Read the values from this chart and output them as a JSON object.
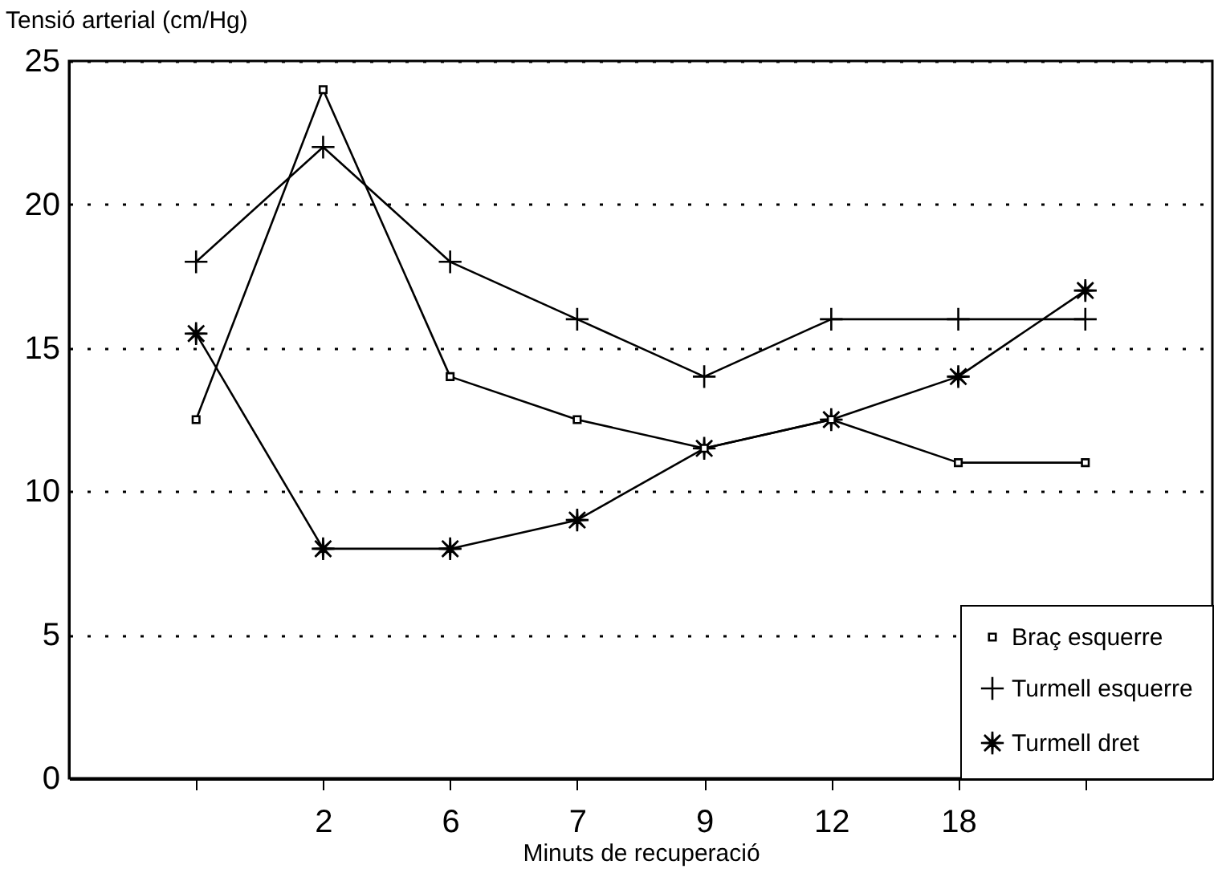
{
  "chart_data": {
    "type": "line",
    "xlabel": "Minuts de recuperació",
    "ylabel": "Tensió arterial (cm/Hg)",
    "categories": [
      null,
      "2",
      "6",
      "7",
      "9",
      "12",
      "18",
      null
    ],
    "series": [
      {
        "name": "Braç esquerre",
        "color": "#000000",
        "marker": "square",
        "values": [
          12.5,
          24,
          14,
          12.5,
          11.5,
          12.5,
          11,
          11
        ]
      },
      {
        "name": "Turmell esquerre",
        "color": "#000000",
        "marker": "cross",
        "values": [
          18,
          22,
          18,
          16,
          14,
          16,
          16,
          16
        ]
      },
      {
        "name": "Turmell dret",
        "color": "#000000",
        "marker": "star",
        "values": [
          15.5,
          8,
          8,
          9,
          11.5,
          12.5,
          14,
          17
        ]
      }
    ],
    "ylim": [
      0,
      25
    ],
    "yticks": [
      0,
      5,
      10,
      15,
      20,
      25
    ],
    "grid": "y",
    "legend": "bottom right",
    "line_style": "solid"
  }
}
